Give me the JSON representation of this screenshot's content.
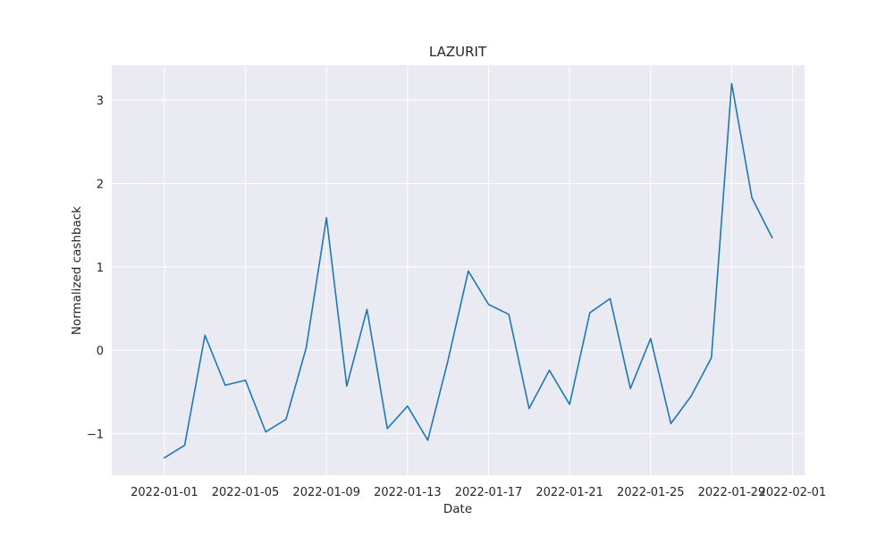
{
  "chart_data": {
    "type": "line",
    "title": "LAZURIT",
    "xlabel": "Date",
    "ylabel": "Normalized cashback",
    "x_ticks": [
      "2022-01-01",
      "2022-01-05",
      "2022-01-09",
      "2022-01-13",
      "2022-01-17",
      "2022-01-21",
      "2022-01-25",
      "2022-01-29",
      "2022-02-01"
    ],
    "y_ticks": [
      "−1",
      "0",
      "1",
      "2",
      "3"
    ],
    "xlim": [
      "2021-12-30",
      "2022-02-01"
    ],
    "ylim": [
      -1.5,
      3.42
    ],
    "grid": true,
    "line_color": "#1f77b4",
    "background": "#eaeaf2",
    "series": [
      {
        "x": [
          "2022-01-01",
          "2022-01-02",
          "2022-01-03",
          "2022-01-04",
          "2022-01-05",
          "2022-01-06",
          "2022-01-07",
          "2022-01-08",
          "2022-01-09",
          "2022-01-10",
          "2022-01-11",
          "2022-01-12",
          "2022-01-13",
          "2022-01-14",
          "2022-01-15",
          "2022-01-16",
          "2022-01-17",
          "2022-01-18",
          "2022-01-19",
          "2022-01-20",
          "2022-01-21",
          "2022-01-22",
          "2022-01-23",
          "2022-01-24",
          "2022-01-25",
          "2022-01-26",
          "2022-01-27",
          "2022-01-28",
          "2022-01-29",
          "2022-01-30",
          "2022-01-31"
        ],
        "values": [
          -1.29,
          -1.14,
          0.18,
          -0.42,
          -0.36,
          -0.98,
          -0.83,
          0.03,
          1.59,
          -0.43,
          0.49,
          -0.94,
          -0.67,
          -1.08,
          -0.12,
          0.95,
          0.55,
          0.43,
          -0.7,
          -0.24,
          -0.65,
          0.45,
          0.62,
          -0.46,
          0.14,
          -0.88,
          -0.55,
          -0.09,
          3.2,
          1.83,
          1.35
        ]
      }
    ]
  }
}
